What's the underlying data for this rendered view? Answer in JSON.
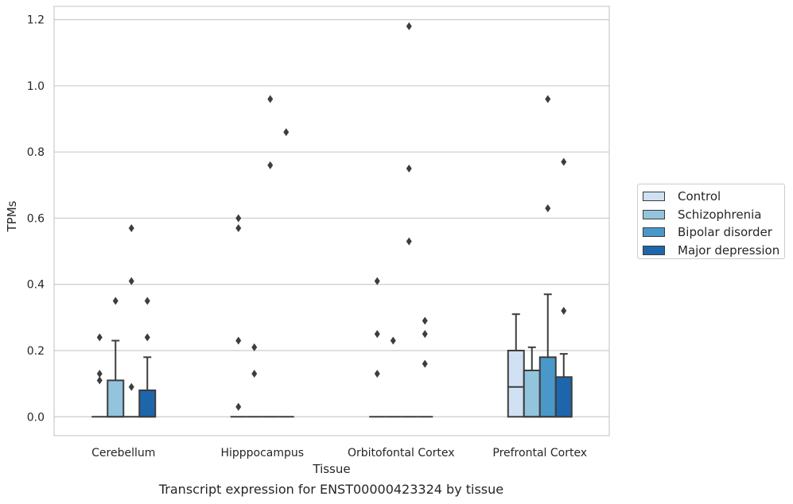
{
  "caption": "Transcript expression for ENST00000423324 by tissue",
  "chart_data": {
    "type": "box",
    "title": "",
    "xlabel": "Tissue",
    "ylabel": "TPMs",
    "ylim": [
      -0.057,
      1.24
    ],
    "yticks": [
      "0.0",
      "0.2",
      "0.4",
      "0.6",
      "0.8",
      "1.0",
      "1.2"
    ],
    "ytick_values": [
      0.0,
      0.2,
      0.4,
      0.6,
      0.8,
      1.0,
      1.2
    ],
    "grid": "horizontal",
    "legend_position": "right",
    "categories": [
      "Cerebellum",
      "Hipppocampus",
      "Orbitofontal Cortex",
      "Prefrontal Cortex"
    ],
    "series": [
      {
        "name": "Control",
        "color": "#cfe1f2",
        "boxes": [
          {
            "q1": 0.0,
            "median": 0.0,
            "q3": 0.0,
            "whisker_low": 0.0,
            "whisker_high": 0.0,
            "outliers": [
              0.24,
              0.13,
              0.11
            ]
          },
          {
            "q1": 0.0,
            "median": 0.0,
            "q3": 0.0,
            "whisker_low": 0.0,
            "whisker_high": 0.0,
            "outliers": [
              0.6,
              0.57,
              0.23,
              0.03
            ]
          },
          {
            "q1": 0.0,
            "median": 0.0,
            "q3": 0.0,
            "whisker_low": 0.0,
            "whisker_high": 0.0,
            "outliers": [
              0.41,
              0.25,
              0.13
            ]
          },
          {
            "q1": 0.0,
            "median": 0.09,
            "q3": 0.2,
            "whisker_low": 0.0,
            "whisker_high": 0.31,
            "outliers": []
          }
        ]
      },
      {
        "name": "Schizophrenia",
        "color": "#93c4de",
        "boxes": [
          {
            "q1": 0.0,
            "median": 0.0,
            "q3": 0.11,
            "whisker_low": 0.0,
            "whisker_high": 0.23,
            "outliers": [
              0.35
            ]
          },
          {
            "q1": 0.0,
            "median": 0.0,
            "q3": 0.0,
            "whisker_low": 0.0,
            "whisker_high": 0.0,
            "outliers": [
              0.21,
              0.13
            ]
          },
          {
            "q1": 0.0,
            "median": 0.0,
            "q3": 0.0,
            "whisker_low": 0.0,
            "whisker_high": 0.0,
            "outliers": [
              0.23
            ]
          },
          {
            "q1": 0.0,
            "median": 0.0,
            "q3": 0.14,
            "whisker_low": 0.0,
            "whisker_high": 0.21,
            "outliers": []
          }
        ]
      },
      {
        "name": "Bipolar disorder",
        "color": "#4a98c9",
        "boxes": [
          {
            "q1": 0.0,
            "median": 0.0,
            "q3": 0.0,
            "whisker_low": 0.0,
            "whisker_high": 0.0,
            "outliers": [
              0.57,
              0.41,
              0.09
            ]
          },
          {
            "q1": 0.0,
            "median": 0.0,
            "q3": 0.0,
            "whisker_low": 0.0,
            "whisker_high": 0.0,
            "outliers": [
              0.96,
              0.76
            ]
          },
          {
            "q1": 0.0,
            "median": 0.0,
            "q3": 0.0,
            "whisker_low": 0.0,
            "whisker_high": 0.0,
            "outliers": [
              1.18,
              0.75,
              0.53
            ]
          },
          {
            "q1": 0.0,
            "median": 0.0,
            "q3": 0.18,
            "whisker_low": 0.0,
            "whisker_high": 0.37,
            "outliers": [
              0.96,
              0.63
            ]
          }
        ]
      },
      {
        "name": "Major depression",
        "color": "#1d66ab",
        "boxes": [
          {
            "q1": 0.0,
            "median": 0.0,
            "q3": 0.08,
            "whisker_low": 0.0,
            "whisker_high": 0.18,
            "outliers": [
              0.35,
              0.24
            ]
          },
          {
            "q1": 0.0,
            "median": 0.0,
            "q3": 0.0,
            "whisker_low": 0.0,
            "whisker_high": 0.0,
            "outliers": [
              0.86
            ]
          },
          {
            "q1": 0.0,
            "median": 0.0,
            "q3": 0.0,
            "whisker_low": 0.0,
            "whisker_high": 0.0,
            "outliers": [
              0.29,
              0.25,
              0.16
            ]
          },
          {
            "q1": 0.0,
            "median": 0.0,
            "q3": 0.12,
            "whisker_low": 0.0,
            "whisker_high": 0.19,
            "outliers": [
              0.77,
              0.32
            ]
          }
        ]
      }
    ]
  }
}
